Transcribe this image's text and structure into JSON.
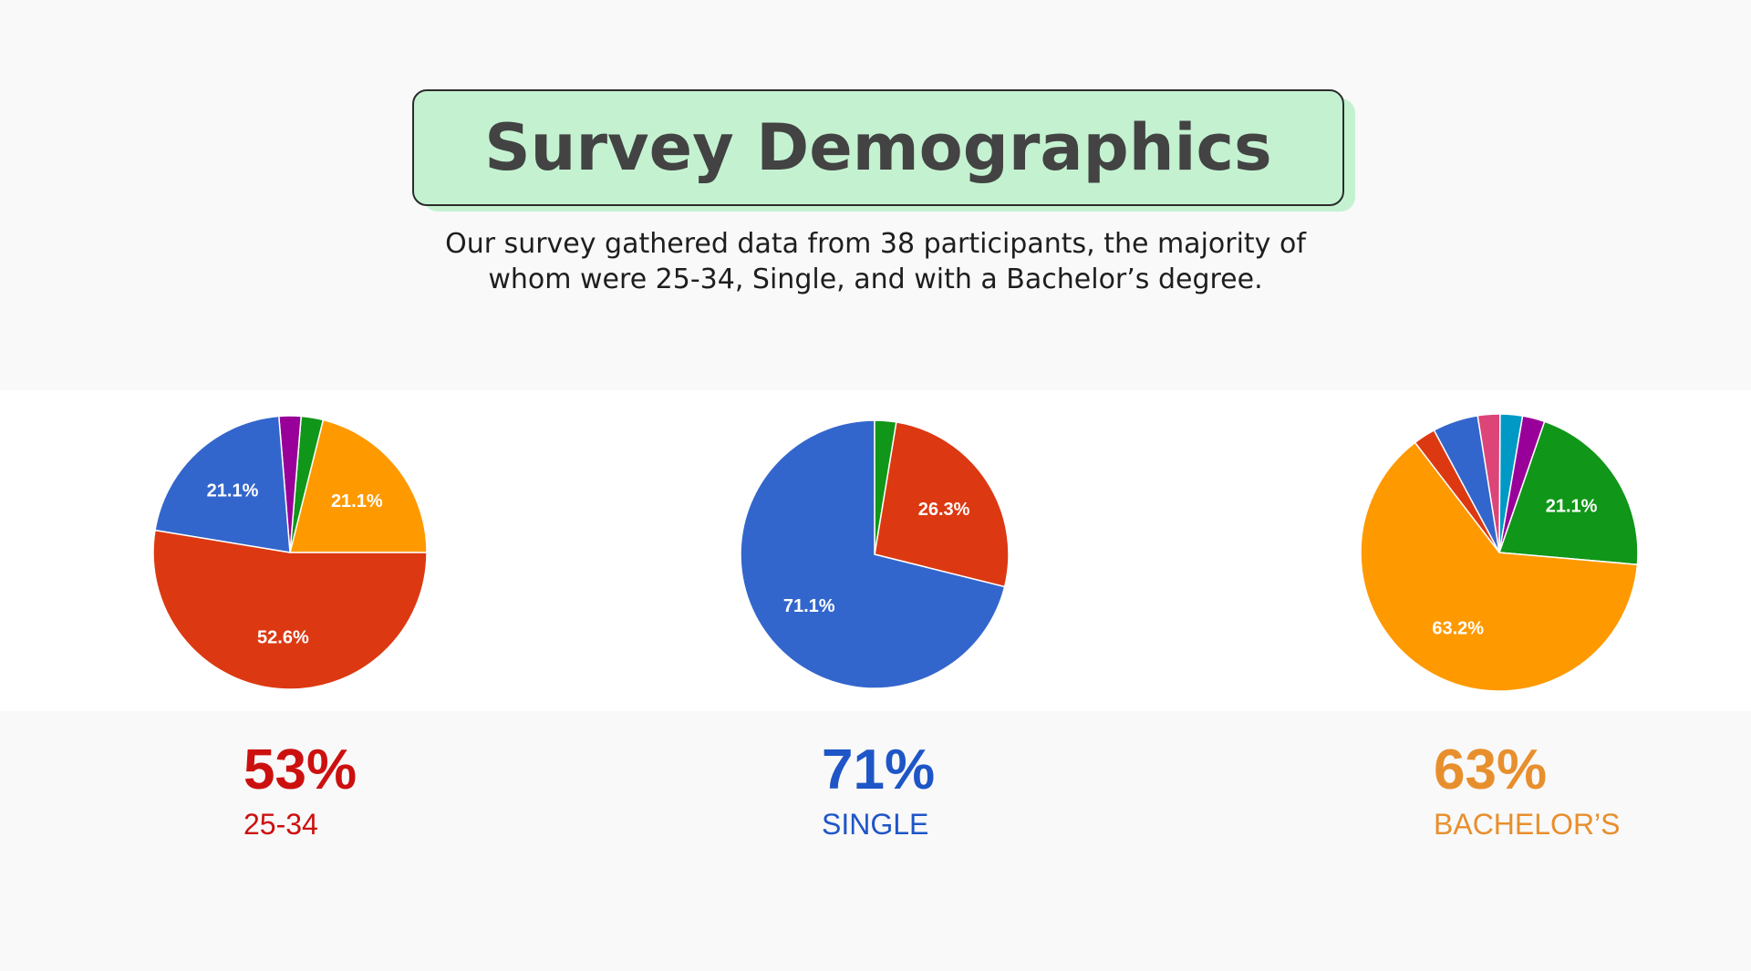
{
  "header": {
    "title": "Survey Demographics",
    "description_line1": "Our survey gathered data from 38 participants, the majority of",
    "description_line2": "whom were 25-34, Single, and with a Bachelor’s degree."
  },
  "colors": {
    "title_bg": "#c4f2d1",
    "age_accent": "#cc1010",
    "status_accent": "#1f56c7",
    "education_accent": "#e88f2d"
  },
  "stats": [
    {
      "value": "53%",
      "label": "25-34"
    },
    {
      "value": "71%",
      "label": "SINGLE"
    },
    {
      "value": "63%",
      "label": "BACHELOR’S"
    }
  ],
  "chart_data": [
    {
      "type": "pie",
      "start_angle_deg": 0,
      "slices": [
        {
          "value": 21.1,
          "color": "#ff9900",
          "label": "21.1%"
        },
        {
          "value": 2.6,
          "color": "#109618",
          "label": ""
        },
        {
          "value": 2.6,
          "color": "#990099",
          "label": ""
        },
        {
          "value": 21.1,
          "color": "#3366cc",
          "label": "21.1%"
        },
        {
          "value": 52.6,
          "color": "#dc3912",
          "label": "52.6%"
        }
      ]
    },
    {
      "type": "pie",
      "start_angle_deg": -14,
      "slices": [
        {
          "value": 26.3,
          "color": "#dc3912",
          "label": "26.3%"
        },
        {
          "value": 2.6,
          "color": "#109618",
          "label": ""
        },
        {
          "value": 71.1,
          "color": "#3366cc",
          "label": "71.1%"
        }
      ]
    },
    {
      "type": "pie",
      "start_angle_deg": -5,
      "slices": [
        {
          "value": 21.1,
          "color": "#109618",
          "label": "21.1%"
        },
        {
          "value": 2.6,
          "color": "#990099",
          "label": ""
        },
        {
          "value": 2.6,
          "color": "#0099c6",
          "label": ""
        },
        {
          "value": 2.6,
          "color": "#dd4477",
          "label": ""
        },
        {
          "value": 5.3,
          "color": "#3366cc",
          "label": ""
        },
        {
          "value": 2.6,
          "color": "#dc3912",
          "label": ""
        },
        {
          "value": 63.2,
          "color": "#ff9900",
          "label": "63.2%"
        }
      ]
    }
  ]
}
